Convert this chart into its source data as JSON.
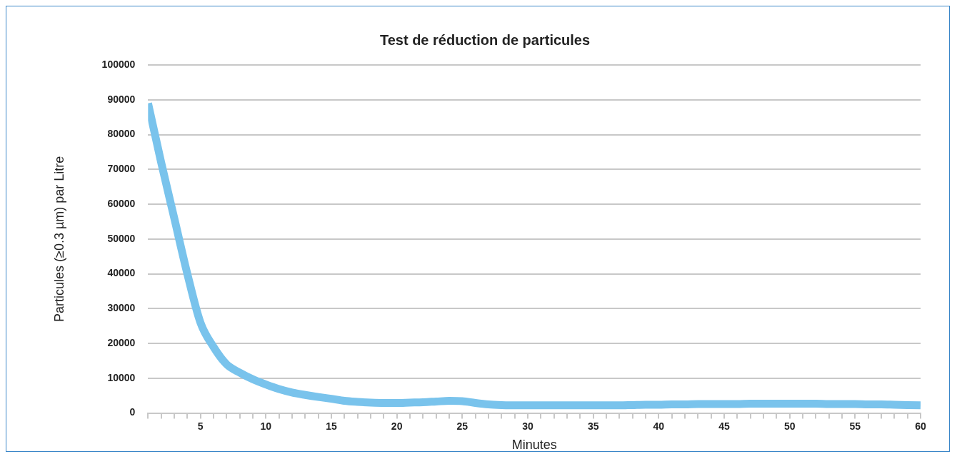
{
  "chart_data": {
    "type": "line",
    "title": "Test de réduction de particules",
    "xlabel": "Minutes",
    "ylabel": "Particules (≥0.3 µm) par Litre",
    "x": [
      1,
      2,
      3,
      4,
      5,
      6,
      7,
      8,
      9,
      10,
      11,
      12,
      13,
      14,
      15,
      16,
      17,
      18,
      19,
      20,
      21,
      22,
      23,
      24,
      25,
      26,
      27,
      28,
      29,
      30,
      31,
      32,
      33,
      34,
      35,
      36,
      37,
      38,
      39,
      40,
      41,
      42,
      43,
      44,
      45,
      46,
      47,
      48,
      49,
      50,
      51,
      52,
      53,
      54,
      55,
      56,
      57,
      58,
      59,
      60
    ],
    "series": [
      {
        "color": "#79c3ec",
        "values": [
          89000,
          72000,
          56000,
          40000,
          26000,
          19000,
          14000,
          11600,
          9700,
          8200,
          6900,
          5900,
          5200,
          4600,
          4100,
          3500,
          3200,
          3000,
          2900,
          2900,
          3000,
          3100,
          3300,
          3500,
          3400,
          2900,
          2500,
          2300,
          2200,
          2200,
          2200,
          2200,
          2200,
          2200,
          2200,
          2200,
          2200,
          2300,
          2400,
          2400,
          2500,
          2500,
          2600,
          2600,
          2600,
          2600,
          2700,
          2700,
          2700,
          2700,
          2700,
          2700,
          2600,
          2600,
          2600,
          2500,
          2500,
          2400,
          2300,
          2200
        ]
      }
    ],
    "xlim": [
      1,
      60
    ],
    "xticks": [
      {
        "value": 1,
        "label": null
      },
      {
        "value": 2,
        "label": null
      },
      {
        "value": 3,
        "label": null
      },
      {
        "value": 4,
        "label": null
      },
      5,
      {
        "value": 6,
        "label": null
      },
      {
        "value": 7,
        "label": null
      },
      {
        "value": 8,
        "label": null
      },
      {
        "value": 9,
        "label": null
      },
      10,
      {
        "value": 11,
        "label": null
      },
      {
        "value": 12,
        "label": null
      },
      {
        "value": 13,
        "label": null
      },
      {
        "value": 14,
        "label": null
      },
      15,
      {
        "value": 16,
        "label": null
      },
      {
        "value": 17,
        "label": null
      },
      {
        "value": 18,
        "label": null
      },
      {
        "value": 19,
        "label": null
      },
      20,
      {
        "value": 21,
        "label": null
      },
      {
        "value": 22,
        "label": null
      },
      {
        "value": 23,
        "label": null
      },
      {
        "value": 24,
        "label": null
      },
      25,
      {
        "value": 26,
        "label": null
      },
      {
        "value": 27,
        "label": null
      },
      {
        "value": 28,
        "label": null
      },
      {
        "value": 29,
        "label": null
      },
      30,
      {
        "value": 31,
        "label": null
      },
      {
        "value": 32,
        "label": null
      },
      {
        "value": 33,
        "label": null
      },
      {
        "value": 34,
        "label": null
      },
      35,
      {
        "value": 36,
        "label": null
      },
      {
        "value": 37,
        "label": null
      },
      {
        "value": 38,
        "label": null
      },
      {
        "value": 39,
        "label": null
      },
      40,
      {
        "value": 41,
        "label": null
      },
      {
        "value": 42,
        "label": null
      },
      {
        "value": 43,
        "label": null
      },
      {
        "value": 44,
        "label": null
      },
      45,
      {
        "value": 46,
        "label": null
      },
      {
        "value": 47,
        "label": null
      },
      {
        "value": 48,
        "label": null
      },
      {
        "value": 49,
        "label": null
      },
      50,
      {
        "value": 51,
        "label": null
      },
      {
        "value": 52,
        "label": null
      },
      {
        "value": 53,
        "label": null
      },
      {
        "value": 54,
        "label": null
      },
      55,
      {
        "value": 56,
        "label": null
      },
      {
        "value": 57,
        "label": null
      },
      {
        "value": 58,
        "label": null
      },
      {
        "value": 59,
        "label": null
      },
      60
    ],
    "ylim": [
      0,
      100000
    ],
    "yticks": [
      0,
      10000,
      20000,
      30000,
      40000,
      50000,
      60000,
      70000,
      80000,
      90000,
      100000
    ],
    "grid": "y",
    "legend": false,
    "marker": "none",
    "line_style": "solid"
  }
}
